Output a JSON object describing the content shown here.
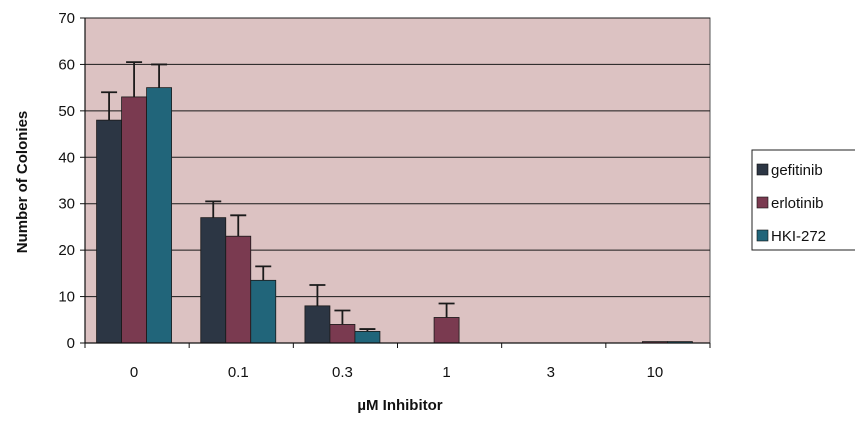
{
  "chart_data": {
    "type": "bar",
    "title": "",
    "xlabel": "µM Inhibitor",
    "ylabel": "Number of Colonies",
    "categories": [
      "0",
      "0.1",
      "0.3",
      "1",
      "3",
      "10"
    ],
    "ylim": [
      0,
      70
    ],
    "yticks": [
      0,
      10,
      20,
      30,
      40,
      50,
      60,
      70
    ],
    "grid": true,
    "legend_position": "right",
    "series": [
      {
        "name": "gefitinib",
        "color": "#2c3644",
        "values": [
          48,
          27,
          8,
          0,
          0,
          0
        ],
        "errors": [
          6,
          3.5,
          4.5,
          0,
          0,
          0
        ]
      },
      {
        "name": "erlotinib",
        "color": "#7a3a50",
        "values": [
          53,
          23,
          4,
          5.5,
          0,
          0.3
        ],
        "errors": [
          7.5,
          4.5,
          3,
          3,
          0,
          0
        ]
      },
      {
        "name": "HKI-272",
        "color": "#21657a",
        "values": [
          55,
          13.5,
          2.5,
          0,
          0,
          0.3
        ],
        "errors": [
          5,
          3,
          0.5,
          0,
          0,
          0
        ]
      }
    ],
    "colors": {
      "plot_background": "#dcc2c2",
      "gridline": "#1a1a1a"
    }
  }
}
